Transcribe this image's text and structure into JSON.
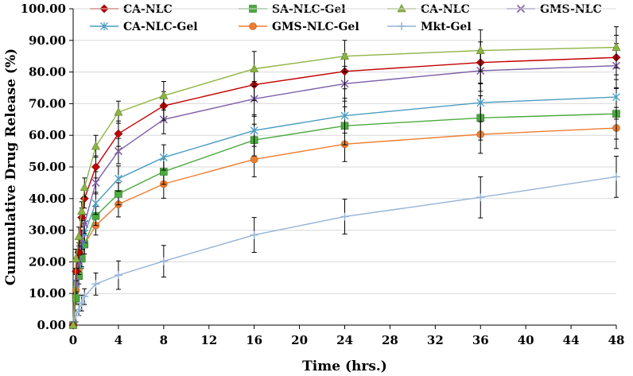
{
  "chart_data": {
    "type": "line",
    "title": "",
    "xlabel": "Time (hrs.)",
    "ylabel": "Cummulative Drug Release (%)",
    "xlim": [
      0,
      48
    ],
    "ylim": [
      0,
      100
    ],
    "xticks": [
      "0",
      "4",
      "8",
      "12",
      "16",
      "20",
      "24",
      "28",
      "32",
      "36",
      "40",
      "44",
      "48"
    ],
    "yticks": [
      "0.00",
      "10.00",
      "20.00",
      "30.00",
      "40.00",
      "50.00",
      "60.00",
      "70.00",
      "80.00",
      "90.00",
      "100.00"
    ],
    "grid": "horizontal",
    "legend_position": "top",
    "x": [
      0,
      0.25,
      0.5,
      0.75,
      1,
      2,
      4,
      8,
      16,
      24,
      36,
      48
    ],
    "series": [
      {
        "name": "CA-NLC",
        "color": "#c00000",
        "marker": "diamond",
        "values": [
          0,
          17,
          23,
          34,
          40,
          50,
          60.5,
          69.3,
          76,
          80.2,
          83,
          84.6
        ],
        "errors": [
          0,
          3,
          3,
          3,
          3,
          3.5,
          4,
          4.5,
          5,
          5.5,
          6.5,
          7
        ]
      },
      {
        "name": "SA-NLC-Gel",
        "color": "#4aab3c",
        "marker": "square",
        "values": [
          0,
          8.5,
          15.5,
          21,
          25.5,
          34.5,
          41.5,
          48.5,
          58.5,
          63,
          65.5,
          66.8
        ],
        "errors": [
          0,
          2,
          2.5,
          3,
          3,
          3,
          3.5,
          4,
          5,
          6,
          7,
          8
        ]
      },
      {
        "name": "CA-NLC",
        "color": "#8db443",
        "marker": "triangle",
        "values": [
          0,
          21,
          28,
          36,
          43.5,
          56.5,
          67.3,
          72.5,
          81,
          85,
          86.8,
          87.8
        ],
        "errors": [
          0,
          3,
          3,
          3,
          3,
          3.5,
          3.5,
          4.5,
          5.5,
          5,
          6.5,
          6.5
        ]
      },
      {
        "name": "GMS-NLC",
        "color": "#7f5fa8",
        "marker": "x",
        "values": [
          0,
          13.5,
          20,
          27,
          32,
          45,
          55,
          65,
          71.5,
          76.3,
          80.4,
          82
        ],
        "errors": [
          0,
          3,
          3,
          3,
          3,
          3.5,
          4,
          4.5,
          5.5,
          5.5,
          6.5,
          7
        ]
      },
      {
        "name": "CA-NLC-Gel",
        "color": "#4b9bc0",
        "marker": "star",
        "values": [
          0,
          13,
          19,
          25.5,
          29,
          38.5,
          46.3,
          53,
          61.5,
          66.2,
          70.3,
          72.1
        ],
        "errors": [
          0,
          3,
          3,
          3,
          3,
          3.5,
          4,
          4,
          5,
          5.5,
          6,
          7
        ]
      },
      {
        "name": "GMS-NLC-Gel",
        "color": "#ed7d31",
        "marker": "circle",
        "values": [
          0,
          11,
          17.5,
          21.5,
          25.5,
          31.5,
          38.2,
          44.6,
          52.4,
          57.2,
          60.3,
          62.3
        ],
        "errors": [
          0,
          2.5,
          2.5,
          3,
          3,
          3,
          4,
          4.5,
          5.5,
          5.5,
          6,
          6.5
        ]
      },
      {
        "name": "Mkt-Gel",
        "color": "#95b3d7",
        "marker": "plus",
        "values": [
          0,
          3,
          5,
          7,
          9,
          13,
          15.8,
          20.2,
          28.5,
          34.3,
          40.4,
          46.9
        ],
        "errors": [
          0,
          2,
          2,
          2.5,
          2.5,
          3.5,
          4.5,
          5,
          5.5,
          5.5,
          6.5,
          6.5
        ]
      }
    ]
  }
}
